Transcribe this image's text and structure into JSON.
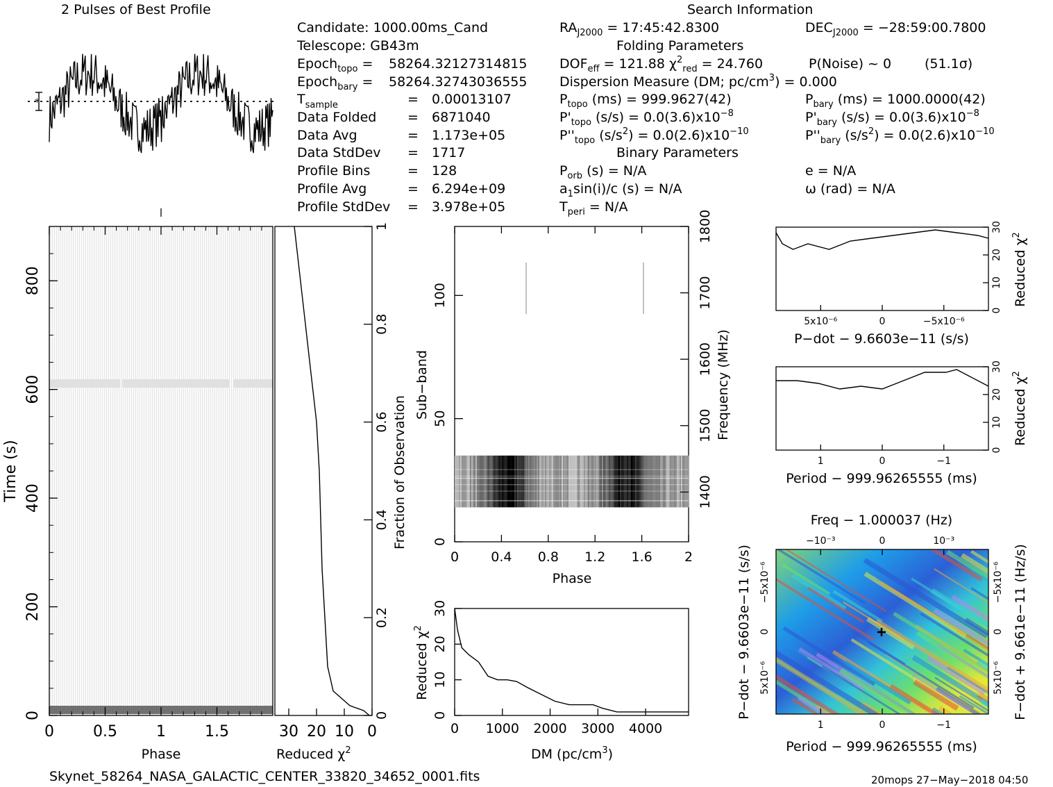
{
  "title": "2 Pulses of Best Profile",
  "search_info_title": "Search Information",
  "folding_title": "Folding Parameters",
  "binary_title": "Binary Parameters",
  "candidate_info": {
    "candidate": "Candidate:  1000.00ms_Cand",
    "telescope": "Telescope:  GB43m",
    "epoch_topo": "58264.32127314815",
    "epoch_bary": "58264.32743036555",
    "t_sample": "0.00013107",
    "data_folded": "6871040",
    "data_avg": "1.173e+05",
    "data_stddev": "1717",
    "profile_bins": "128",
    "profile_avg": "6.294e+09",
    "profile_stddev": "3.978e+05",
    "labels": {
      "epoch": "Epoch",
      "topo": "topo",
      "bary": "bary",
      "t": "T",
      "sample": "sample",
      "data_folded": "Data Folded",
      "data_avg": "Data Avg",
      "data_stddev": "Data StdDev",
      "profile_bins": "Profile Bins",
      "profile_avg": "Profile Avg",
      "profile_stddev": "Profile StdDev"
    }
  },
  "search": {
    "ra": "17:45:42.8300",
    "dec": "−28:59:00.7800",
    "j2000": "J2000",
    "dof_eff": "121.88",
    "chi2_red": "24.760",
    "p_noise": "P(Noise) ~ 0",
    "sigma": "(51.1σ)",
    "dm_label": "Dispersion Measure (DM; pc/cm",
    "dm_value": ") = 0.000",
    "p_topo": "999.9627(42)",
    "p_bary": "1000.0000(42)",
    "pd_topo": "0.0(3.6)x10",
    "pd_bary": "0.0(3.6)x10",
    "pd_exp": "−8",
    "pdd_topo": "0.0(2.6)x10",
    "pdd_bary": "0.0(2.6)x10",
    "pdd_exp": "−10",
    "p_orb": "(s) = N/A",
    "a1": "sin(i)/c (s) = N/A",
    "t_peri": "= N/A",
    "e": "e = N/A",
    "omega": "ω (rad) = N/A"
  },
  "footer": {
    "filename": "Skynet_58264_NASA_GALACTIC_CENTER_33820_34652_0001.fits",
    "stamp": "20mops 27−May−2018 04:50"
  },
  "axes": {
    "time_label": "Time (s)",
    "phase_label": "Phase",
    "reduced_chi2": "Reduced χ",
    "fraction_label": "Fraction of Observation",
    "subband_label": "Sub−band",
    "frequency_label": "Frequency (MHz)",
    "dm_label": "DM (pc/cm",
    "pdot_label": "P−dot − 9.6603e−11 (s/s)",
    "period_label": "Period − 999.96265555 (ms)",
    "freq_label": "Freq − 1.000037 (Hz)",
    "fdot_label": "F−dot + 9.661e−11 (Hz/s)",
    "pdot_left_label": "P−dot − 9.6603e−11 (s/s)"
  },
  "colors": {
    "foreground": "#000000",
    "background": "#ffffff"
  },
  "chart_data": [
    {
      "id": "profile",
      "type": "line",
      "title": "2 Pulses of Best Profile",
      "xlim": [
        0,
        2
      ],
      "note": "noisy profile repeated twice over phase 0-2"
    },
    {
      "id": "time_phase",
      "type": "heatmap",
      "xlabel": "Phase",
      "ylabel": "Time (s)",
      "xlim": [
        0,
        2
      ],
      "ylim": [
        0,
        900
      ],
      "x_ticks": [
        "0",
        "0.5",
        "1",
        "1.5"
      ],
      "y_ticks": [
        "0",
        "200",
        "400",
        "600",
        "800"
      ]
    },
    {
      "id": "chi2_time",
      "type": "line",
      "xlabel": "Reduced χ²",
      "ylabel": "Fraction of Observation",
      "xlim": [
        35,
        0
      ],
      "ylim": [
        0,
        1
      ],
      "x_ticks": [
        "30",
        "20",
        "10",
        "0"
      ],
      "y_ticks": [
        "0",
        "0.2",
        "0.4",
        "0.6",
        "0.8",
        "1"
      ],
      "points": [
        [
          1,
          0
        ],
        [
          3,
          0.01
        ],
        [
          8,
          0.02
        ],
        [
          14,
          0.05
        ],
        [
          16,
          0.1
        ],
        [
          17,
          0.2
        ],
        [
          18,
          0.3
        ],
        [
          18.5,
          0.4
        ],
        [
          19,
          0.5
        ],
        [
          20,
          0.6
        ],
        [
          22,
          0.7
        ],
        [
          24,
          0.8
        ],
        [
          26,
          0.9
        ],
        [
          28,
          1.0
        ]
      ]
    },
    {
      "id": "subband_phase",
      "type": "heatmap",
      "xlabel": "Phase",
      "ylabel": "Sub−band",
      "y2label": "Frequency (MHz)",
      "xlim": [
        0,
        2
      ],
      "ylim": [
        0,
        128
      ],
      "x_ticks": [
        "0",
        "0.4",
        "0.8",
        "1.2",
        "1.6",
        "2"
      ],
      "y_ticks": [
        "0",
        "50",
        "100"
      ],
      "y2_ticks": [
        "1400",
        "1500",
        "1600",
        "1700",
        "1800"
      ],
      "band_subbands": [
        14,
        35
      ]
    },
    {
      "id": "chi2_dm",
      "type": "line",
      "xlabel": "DM (pc/cm³)",
      "ylabel": "Reduced χ²",
      "xlim": [
        0,
        4900
      ],
      "ylim": [
        0,
        30
      ],
      "x_ticks": [
        "0",
        "1000",
        "2000",
        "3000",
        "4000"
      ],
      "y_ticks": [
        "0",
        "10",
        "20",
        "30"
      ],
      "points": [
        [
          0,
          30
        ],
        [
          60,
          24
        ],
        [
          150,
          19
        ],
        [
          300,
          17
        ],
        [
          500,
          15
        ],
        [
          700,
          11
        ],
        [
          900,
          10
        ],
        [
          1100,
          10
        ],
        [
          1300,
          9.5
        ],
        [
          1500,
          8
        ],
        [
          1800,
          6
        ],
        [
          2100,
          4
        ],
        [
          2400,
          3
        ],
        [
          2700,
          3
        ],
        [
          2900,
          3
        ],
        [
          3100,
          2
        ],
        [
          3400,
          1
        ],
        [
          3800,
          1
        ],
        [
          4200,
          1
        ],
        [
          4600,
          1
        ],
        [
          4900,
          1
        ]
      ]
    },
    {
      "id": "chi2_pdot",
      "type": "line",
      "xlabel": "P−dot − 9.6603e−11 (s/s)",
      "ylabel": "Reduced χ²",
      "ylim": [
        0,
        30
      ],
      "x_ticks": [
        "5x10⁻⁶",
        "0",
        "−5x10⁻⁶"
      ],
      "y_ticks": [
        "0",
        "10",
        "20",
        "30"
      ],
      "points": [
        [
          0,
          28
        ],
        [
          0.03,
          24
        ],
        [
          0.08,
          22
        ],
        [
          0.15,
          24
        ],
        [
          0.25,
          22
        ],
        [
          0.35,
          25
        ],
        [
          0.45,
          26
        ],
        [
          0.55,
          27
        ],
        [
          0.65,
          28
        ],
        [
          0.75,
          29
        ],
        [
          0.85,
          28
        ],
        [
          0.95,
          27
        ],
        [
          1.0,
          26
        ]
      ]
    },
    {
      "id": "chi2_period",
      "type": "line",
      "xlabel": "Period − 999.96265555 (ms)",
      "ylabel": "Reduced χ²",
      "ylim": [
        0,
        30
      ],
      "x_ticks": [
        "1",
        "0",
        "−1"
      ],
      "y_ticks": [
        "0",
        "10",
        "20",
        "30"
      ],
      "points": [
        [
          0,
          25
        ],
        [
          0.1,
          25
        ],
        [
          0.2,
          24
        ],
        [
          0.3,
          22
        ],
        [
          0.4,
          23
        ],
        [
          0.5,
          22
        ],
        [
          0.6,
          25
        ],
        [
          0.7,
          28
        ],
        [
          0.8,
          28
        ],
        [
          0.85,
          29
        ],
        [
          0.9,
          27
        ],
        [
          1.0,
          23
        ]
      ]
    },
    {
      "id": "ppdot_plane",
      "type": "heatmap",
      "xlabel": "Period − 999.96265555 (ms)",
      "ylabel": "P−dot − 9.6603e−11 (s/s)",
      "x_ticks": [
        "1",
        "0",
        "−1"
      ],
      "x2_ticks": [
        "−10⁻³",
        "0",
        "10⁻³"
      ],
      "y_ticks": [
        "5x10⁻⁶",
        "0",
        "−5x10⁻⁶"
      ],
      "y2_ticks": [
        "−5x10⁻⁶",
        "0",
        "5x10⁻⁶"
      ],
      "best_marker": [
        0,
        0
      ]
    }
  ]
}
